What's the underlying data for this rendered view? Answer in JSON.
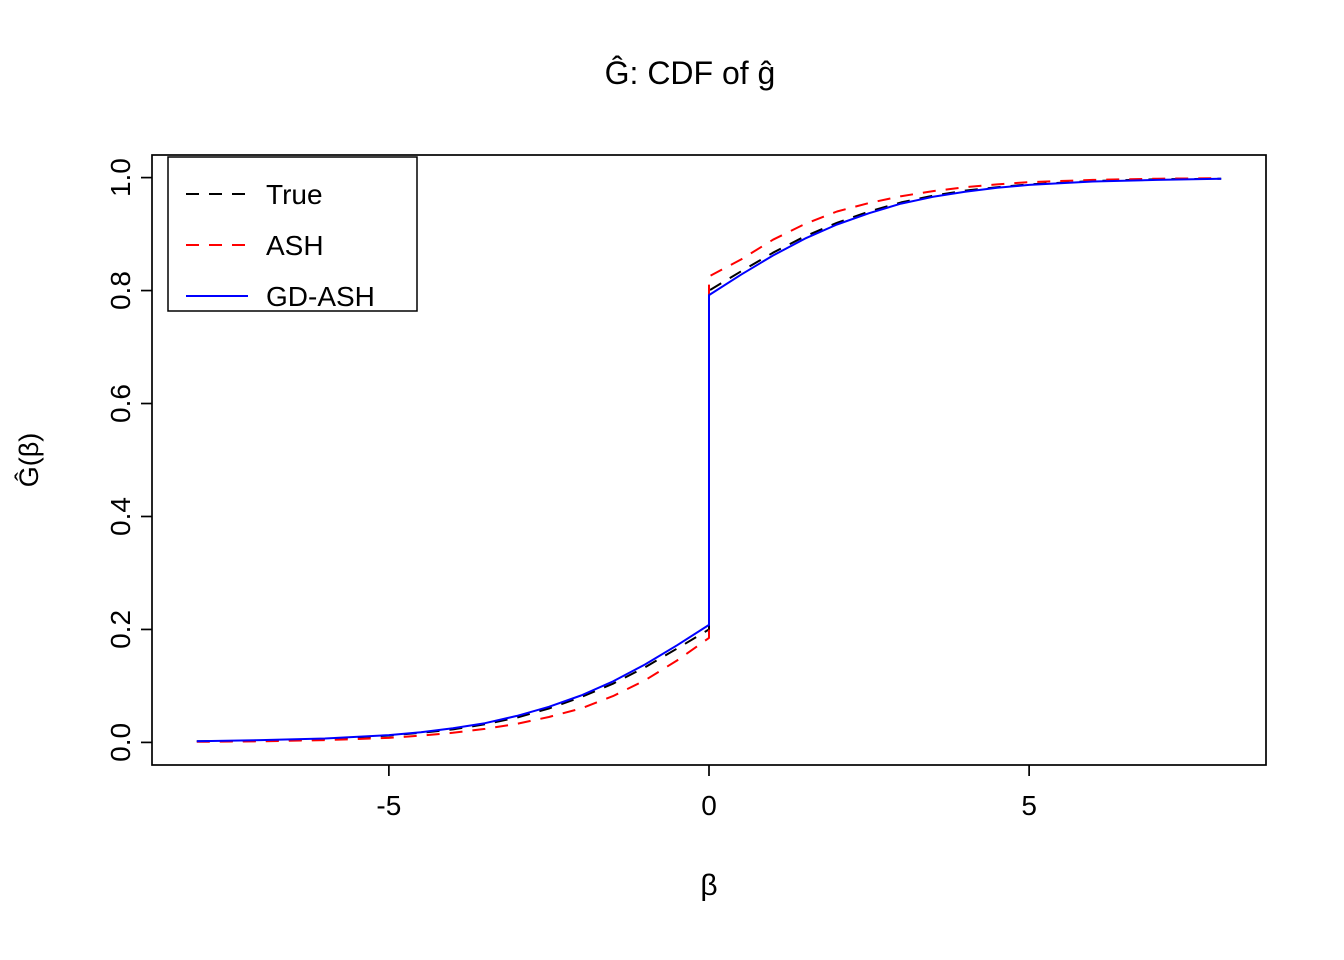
{
  "title": "Ĝ: CDF of ĝ",
  "chart_data": {
    "type": "line",
    "title": "Ĝ: CDF of ĝ",
    "xlabel": "β",
    "ylabel": "Ĝ(β)",
    "xlim": [
      -8.7,
      8.7
    ],
    "ylim": [
      -0.04,
      1.04
    ],
    "x_ticks": [
      -5,
      0,
      5
    ],
    "x_tick_labels": [
      "-5",
      "0",
      "5"
    ],
    "y_ticks": [
      0,
      0.2,
      0.4,
      0.6,
      0.8,
      1
    ],
    "y_tick_labels": [
      "0.0",
      "0.2",
      "0.4",
      "0.6",
      "0.8",
      "1.0"
    ],
    "grid": false,
    "legend_position": "top-left",
    "legend": [
      "True",
      "ASH",
      "GD-ASH"
    ],
    "axis_color": "#000000",
    "series": [
      {
        "name": "True",
        "color": "#000000",
        "line_style": "dashed",
        "x": [
          -8,
          -7,
          -6,
          -5,
          -4.5,
          -4,
          -3.5,
          -3,
          -2.5,
          -2,
          -1.5,
          -1,
          -0.5,
          0,
          0,
          0.5,
          1,
          1.5,
          2,
          2.5,
          3,
          3.5,
          4,
          4.5,
          5,
          6,
          7,
          8
        ],
        "y": [
          0.002,
          0.003,
          0.006,
          0.012,
          0.017,
          0.023,
          0.032,
          0.044,
          0.06,
          0.08,
          0.104,
          0.133,
          0.166,
          0.2,
          0.8,
          0.834,
          0.867,
          0.896,
          0.92,
          0.94,
          0.956,
          0.968,
          0.977,
          0.983,
          0.988,
          0.994,
          0.997,
          0.998
        ]
      },
      {
        "name": "ASH",
        "color": "#FF0000",
        "line_style": "dashed",
        "x": [
          -8,
          -7,
          -6,
          -5,
          -4.5,
          -4,
          -3.5,
          -3,
          -2.5,
          -2,
          -1.5,
          -1,
          -0.5,
          0,
          0,
          0.5,
          1,
          1.5,
          2,
          2.5,
          3,
          3.5,
          4,
          4.5,
          5,
          6,
          7,
          8
        ],
        "y": [
          0.001,
          0.002,
          0.004,
          0.008,
          0.012,
          0.017,
          0.024,
          0.033,
          0.045,
          0.06,
          0.082,
          0.11,
          0.145,
          0.185,
          0.825,
          0.855,
          0.89,
          0.918,
          0.94,
          0.955,
          0.967,
          0.976,
          0.983,
          0.988,
          0.992,
          0.996,
          0.998,
          0.999
        ]
      },
      {
        "name": "GD-ASH",
        "color": "#0000FF",
        "line_style": "solid",
        "x": [
          -8,
          -7,
          -6,
          -5,
          -4.5,
          -4,
          -3.5,
          -3,
          -2.5,
          -2,
          -1.5,
          -1,
          -0.5,
          0,
          0,
          0.5,
          1,
          1.5,
          2,
          2.5,
          3,
          3.5,
          4,
          4.5,
          5,
          6,
          7,
          8
        ],
        "y": [
          0.002,
          0.004,
          0.007,
          0.013,
          0.018,
          0.025,
          0.034,
          0.047,
          0.063,
          0.083,
          0.108,
          0.138,
          0.172,
          0.208,
          0.792,
          0.828,
          0.862,
          0.892,
          0.917,
          0.937,
          0.954,
          0.966,
          0.975,
          0.982,
          0.987,
          0.993,
          0.996,
          0.998
        ]
      }
    ]
  }
}
